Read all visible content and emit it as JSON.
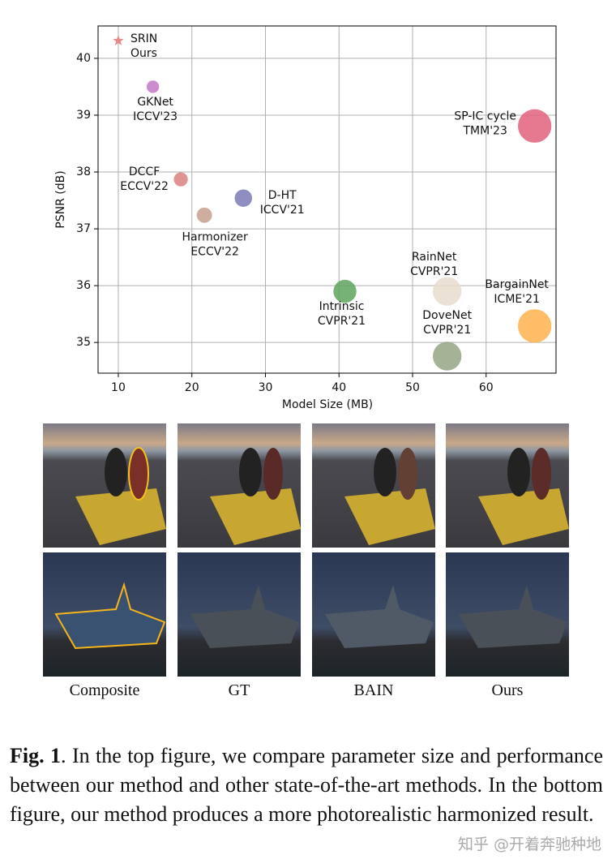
{
  "chart_data": {
    "type": "scatter",
    "x_label": "Model Size (MB)",
    "y_label": "PSNR (dB)",
    "xlim": [
      7.25,
      69.5
    ],
    "ylim": [
      34.46,
      40.57
    ],
    "xticks": [
      10,
      20,
      30,
      40,
      50,
      60
    ],
    "yticks": [
      35,
      36,
      37,
      38,
      39,
      40
    ],
    "grid": true,
    "points": [
      {
        "name": "SRIN",
        "venue": "Ours",
        "x": 10,
        "y": 40.31,
        "color": "#e88a8a",
        "marker": "star"
      },
      {
        "name": "GKNet",
        "venue": "ICCV'23",
        "x": 14.7,
        "y": 39.5,
        "color": "#c678c8"
      },
      {
        "name": "DCCF",
        "venue": "ECCV'22",
        "x": 18.5,
        "y": 37.87,
        "color": "#d98080"
      },
      {
        "name": "Harmonizer",
        "venue": "ECCV'22",
        "x": 21.7,
        "y": 37.24,
        "color": "#c8a08e"
      },
      {
        "name": "D-HT",
        "venue": "ICCV'21",
        "x": 27.0,
        "y": 37.54,
        "color": "#7a7ab6"
      },
      {
        "name": "Intrinsic",
        "venue": "CVPR'21",
        "x": 40.8,
        "y": 35.9,
        "color": "#5ea45e"
      },
      {
        "name": "RainNet",
        "venue": "CVPR'21",
        "x": 54.7,
        "y": 35.9,
        "color": "#e8dccc"
      },
      {
        "name": "DoveNet",
        "venue": "CVPR'21",
        "x": 54.7,
        "y": 34.76,
        "color": "#94a484"
      },
      {
        "name": "BargainNet",
        "venue": "ICME'21",
        "x": 66.6,
        "y": 35.29,
        "color": "#ffb24e"
      },
      {
        "name": "SP-IC cycle",
        "venue": "TMM'23",
        "x": 66.6,
        "y": 38.81,
        "color": "#e2607c"
      }
    ]
  },
  "images": {
    "columns": [
      "Composite",
      "GT",
      "BAIN",
      "Ours"
    ]
  },
  "caption": {
    "label": "Fig. 1",
    "text": ". In the top figure, we compare parameter size and performance between our method and other state-of-the-art methods. In the bottom figure, our method produces a more photorealistic harmonized result."
  },
  "watermark": "知乎 @开着奔驰种地"
}
